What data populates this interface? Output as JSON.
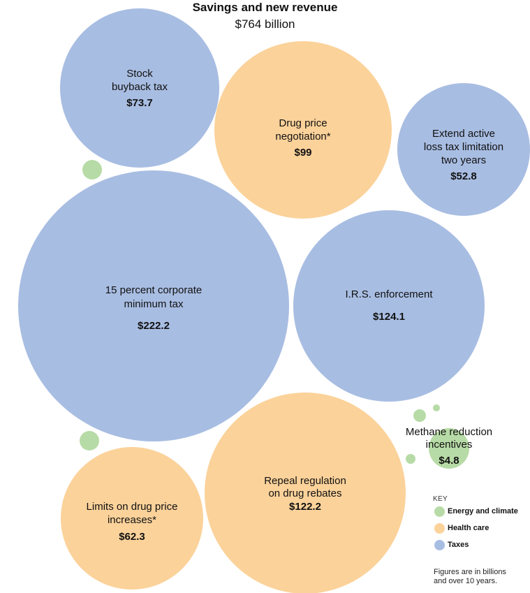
{
  "chart_data": {
    "type": "bubble",
    "title": "Savings and new revenue",
    "subtitle": "$764 billion",
    "categories": [
      {
        "key": "energy",
        "name": "Energy and climate",
        "color": "#b7dba6"
      },
      {
        "key": "health",
        "name": "Health care",
        "color": "#fbd29a"
      },
      {
        "key": "taxes",
        "name": "Taxes",
        "color": "#a8bde2"
      }
    ],
    "bubbles": [
      {
        "name": "stock-buyback-tax",
        "label": [
          "Stock",
          "buyback tax"
        ],
        "value_label": "$73.7",
        "value": 73.7,
        "category": "taxes"
      },
      {
        "name": "drug-price-negotiation",
        "label": [
          "Drug price",
          "negotiation*"
        ],
        "value_label": "$99",
        "value": 99,
        "category": "health"
      },
      {
        "name": "extend-active-loss-tax-limitation",
        "label": [
          "Extend active",
          "loss tax limitation",
          "two years"
        ],
        "value_label": "$52.8",
        "value": 52.8,
        "category": "taxes"
      },
      {
        "name": "corporate-minimum-tax",
        "label": [
          "15 percent corporate",
          "minimum tax"
        ],
        "value_label": "$222.2",
        "value": 222.2,
        "category": "taxes"
      },
      {
        "name": "irs-enforcement",
        "label": [
          "I.R.S. enforcement"
        ],
        "value_label": "$124.1",
        "value": 124.1,
        "category": "taxes"
      },
      {
        "name": "methane-reduction-incentives",
        "label": [
          "Methane reduction",
          "incentives"
        ],
        "value_label": "$4.8",
        "value": 4.8,
        "category": "energy"
      },
      {
        "name": "limits-on-drug-price-increases",
        "label": [
          "Limits on drug price",
          "increases*"
        ],
        "value_label": "$62.3",
        "value": 62.3,
        "category": "health"
      },
      {
        "name": "repeal-regulation-drug-rebates",
        "label": [
          "Repeal regulation",
          "on drug rebates"
        ],
        "value_label": "$122.2",
        "value": 122.2,
        "category": "health"
      },
      {
        "name": "small-energy-bubble",
        "label": [],
        "value_label": "",
        "category": "energy"
      },
      {
        "name": "small-energy-bubble",
        "label": [],
        "value_label": "",
        "category": "energy"
      },
      {
        "name": "small-energy-bubble",
        "label": [],
        "value_label": "",
        "category": "energy"
      },
      {
        "name": "small-energy-bubble",
        "label": [],
        "value_label": "",
        "category": "energy"
      },
      {
        "name": "small-energy-bubble",
        "label": [],
        "value_label": "",
        "category": "energy"
      }
    ],
    "key": {
      "title": "KEY",
      "items": [
        {
          "label": "Energy and climate",
          "color": "#b7dba6"
        },
        {
          "label": "Health care",
          "color": "#fbd29a"
        },
        {
          "label": "Taxes",
          "color": "#a8bde2"
        }
      ]
    },
    "footnote": [
      "Figures are in billions",
      "and over 10 years."
    ]
  }
}
